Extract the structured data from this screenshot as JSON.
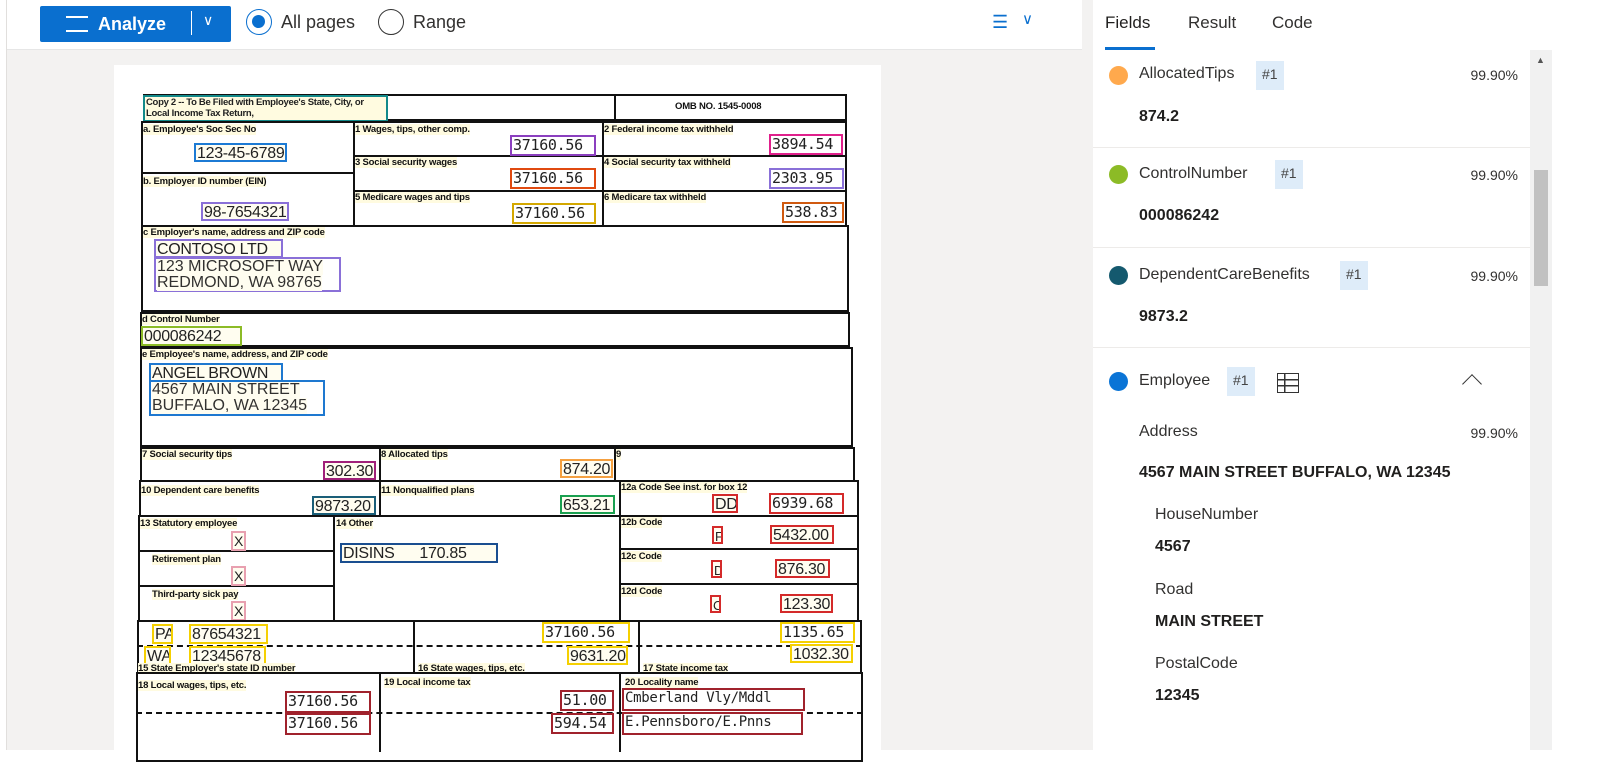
{
  "toolbar": {
    "analyze_label": "Analyze",
    "radio_all": "All pages",
    "radio_range": "Range",
    "selected": "All pages"
  },
  "tabs": {
    "fields": "Fields",
    "result": "Result",
    "code": "Code",
    "active": "Fields"
  },
  "fields": [
    {
      "name": "AllocatedTips",
      "badge": "#1",
      "confidence": "99.90%",
      "value": "874.2",
      "color": "#ffa94d"
    },
    {
      "name": "ControlNumber",
      "badge": "#1",
      "confidence": "99.90%",
      "value": "000086242",
      "color": "#8cbb26"
    },
    {
      "name": "DependentCareBenefits",
      "badge": "#1",
      "confidence": "99.90%",
      "value": "9873.2",
      "color": "#14596e"
    },
    {
      "name": "Employee",
      "badge": "#1",
      "color": "#0a74d6",
      "expanded": true,
      "address": {
        "label": "Address",
        "confidence": "99.90%",
        "value": "4567 MAIN STREET BUFFALO, WA 12345"
      },
      "sub": [
        {
          "label": "HouseNumber",
          "value": "4567"
        },
        {
          "label": "Road",
          "value": "MAIN STREET"
        },
        {
          "label": "PostalCode",
          "value": "12345"
        }
      ]
    }
  ],
  "form": {
    "copy": "Copy 2 -- To Be Filed with Employee's State, City, or Local Income Tax Return,",
    "omb": "OMB NO. 1545-0008",
    "a_label": "a. Employee's Soc Sec No",
    "a_value": "123-45-6789",
    "b_label": "b. Employer ID number (EIN)",
    "b_value": "98-7654321",
    "b1_label": "1 Wages, tips, other comp.",
    "b1_value": "37160.56",
    "b2_label": "2 Federal income tax withheld",
    "b2_value": "3894.54",
    "b3_label": "3 Social security wages",
    "b3_value": "37160.56",
    "b4_label": "4 Social security tax withheld",
    "b4_value": "2303.95",
    "b5_label": "5 Medicare wages and tips",
    "b5_value": "37160.56",
    "b6_label": "6 Medicare tax withheld",
    "b6_value": "538.83",
    "c_label": "c Employer's name, address and ZIP code",
    "c_name": "CONTOSO LTD",
    "c_addr1": "123 MICROSOFT WAY",
    "c_addr2": "REDMOND, WA 98765",
    "d_label": "d Control Number",
    "d_value": "000086242",
    "e_label": "e Employee's name, address, and ZIP code",
    "e_name": "ANGEL BROWN",
    "e_addr1": "4567 MAIN STREET",
    "e_addr2": "BUFFALO, WA 12345",
    "b7_label": "7 Social security tips",
    "b7_value": "302.30",
    "b8_label": "8 Allocated tips",
    "b8_value": "874.20",
    "b9_label": "9",
    "b10_label": "10 Dependent care benefits",
    "b10_value": "9873.20",
    "b11_label": "11 Nonqualified plans",
    "b11_value": "653.21",
    "b12a_label": "12a Code See inst. for box 12",
    "b12a_code": "DD",
    "b12a_value": "6939.68",
    "b12b_label": "12b Code",
    "b12b_code": "F",
    "b12b_value": "5432.00",
    "b12c_label": "12c Code",
    "b12c_code": "D",
    "b12c_value": "876.30",
    "b12d_label": "12d Code",
    "b12d_code": "C",
    "b12d_value": "123.30",
    "b13_label": "13 Statutory employee",
    "b13_value": "X",
    "ret_label": "Retirement plan",
    "ret_value": "X",
    "sick_label": "Third-party sick pay",
    "sick_value": "X",
    "b14_label": "14 Other",
    "b14_value": "DISINS      170.85",
    "state1": "PA",
    "state1_id": "87654321",
    "state2": "WA",
    "state2_id": "12345678",
    "b15_label": "15 State Employer's state ID number",
    "b16_label": "16 State wages, tips, etc.",
    "b16_v1": "37160.56",
    "b16_v2": "9631.20",
    "b17_label": "17 State income tax",
    "b17_v1": "1135.65",
    "b17_v2": "1032.30",
    "b18_label": "18 Local wages, tips, etc.",
    "b18_v1": "37160.56",
    "b18_v2": "37160.56",
    "b19_label": "19 Local income tax",
    "b19_v1": "51.00",
    "b19_v2": "594.54",
    "b20_label": "20 Locality name",
    "b20_v1": "Cmberland Vly/Mddl",
    "b20_v2": "E.Pennsboro/E.Pnns"
  }
}
